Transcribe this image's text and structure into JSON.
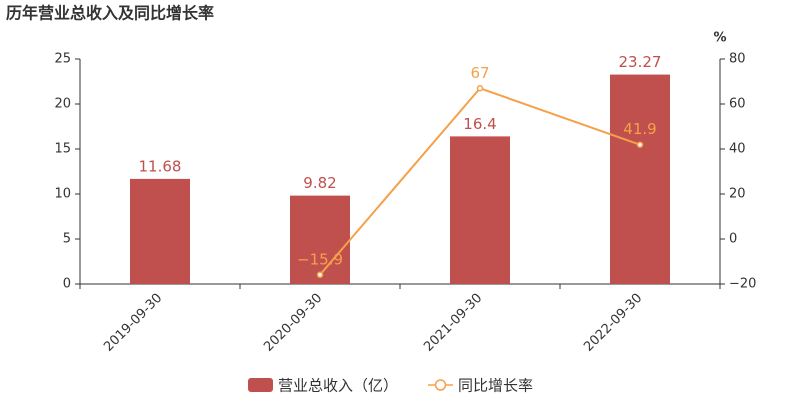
{
  "chart_data": {
    "type": "bar",
    "title": "历年营业总收入及同比增长率",
    "categories": [
      "2019-09-30",
      "2020-09-30",
      "2021-09-30",
      "2022-09-30"
    ],
    "series": [
      {
        "name": "营业总收入（亿）",
        "color": "#c0504d",
        "type": "bar",
        "values": [
          11.68,
          9.82,
          16.4,
          23.27
        ]
      },
      {
        "name": "同比增长率",
        "color": "#f5a04b",
        "type": "line",
        "axis": "y2",
        "values": [
          null,
          -15.9,
          67,
          41.9
        ],
        "value_labels": [
          null,
          "−15.9",
          "67",
          "41.9"
        ]
      }
    ],
    "ylim": [
      0,
      25
    ],
    "yticks": [
      0,
      5,
      10,
      15,
      20,
      25
    ],
    "y2label": "%",
    "y2lim": [
      -20,
      80
    ],
    "y2ticks": [
      {
        "value": -20,
        "label": "−20"
      },
      0,
      20,
      40,
      60,
      80
    ],
    "grid": false
  }
}
